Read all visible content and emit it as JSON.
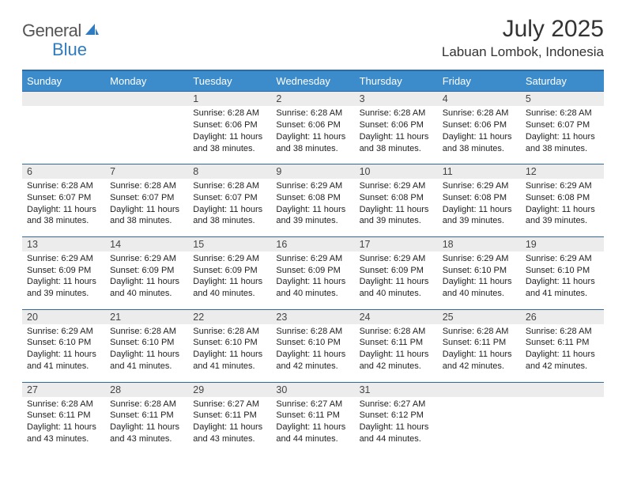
{
  "brand": {
    "part1": "General",
    "part2": "Blue",
    "accent": "#2f7bbf"
  },
  "title": "July 2025",
  "location": "Labuan Lombok, Indonesia",
  "colors": {
    "header_bg": "#3c8ccc",
    "header_fg": "#ffffff",
    "rule": "#2f6aa0",
    "daynum_bg": "#ececec",
    "top_border": "#2f6aa0"
  },
  "weekdays": [
    "Sunday",
    "Monday",
    "Tuesday",
    "Wednesday",
    "Thursday",
    "Friday",
    "Saturday"
  ],
  "weeks": [
    [
      null,
      null,
      {
        "d": "1",
        "sr": "6:28 AM",
        "ss": "6:06 PM",
        "dl": "11 hours and 38 minutes."
      },
      {
        "d": "2",
        "sr": "6:28 AM",
        "ss": "6:06 PM",
        "dl": "11 hours and 38 minutes."
      },
      {
        "d": "3",
        "sr": "6:28 AM",
        "ss": "6:06 PM",
        "dl": "11 hours and 38 minutes."
      },
      {
        "d": "4",
        "sr": "6:28 AM",
        "ss": "6:06 PM",
        "dl": "11 hours and 38 minutes."
      },
      {
        "d": "5",
        "sr": "6:28 AM",
        "ss": "6:07 PM",
        "dl": "11 hours and 38 minutes."
      }
    ],
    [
      {
        "d": "6",
        "sr": "6:28 AM",
        "ss": "6:07 PM",
        "dl": "11 hours and 38 minutes."
      },
      {
        "d": "7",
        "sr": "6:28 AM",
        "ss": "6:07 PM",
        "dl": "11 hours and 38 minutes."
      },
      {
        "d": "8",
        "sr": "6:28 AM",
        "ss": "6:07 PM",
        "dl": "11 hours and 38 minutes."
      },
      {
        "d": "9",
        "sr": "6:29 AM",
        "ss": "6:08 PM",
        "dl": "11 hours and 39 minutes."
      },
      {
        "d": "10",
        "sr": "6:29 AM",
        "ss": "6:08 PM",
        "dl": "11 hours and 39 minutes."
      },
      {
        "d": "11",
        "sr": "6:29 AM",
        "ss": "6:08 PM",
        "dl": "11 hours and 39 minutes."
      },
      {
        "d": "12",
        "sr": "6:29 AM",
        "ss": "6:08 PM",
        "dl": "11 hours and 39 minutes."
      }
    ],
    [
      {
        "d": "13",
        "sr": "6:29 AM",
        "ss": "6:09 PM",
        "dl": "11 hours and 39 minutes."
      },
      {
        "d": "14",
        "sr": "6:29 AM",
        "ss": "6:09 PM",
        "dl": "11 hours and 40 minutes."
      },
      {
        "d": "15",
        "sr": "6:29 AM",
        "ss": "6:09 PM",
        "dl": "11 hours and 40 minutes."
      },
      {
        "d": "16",
        "sr": "6:29 AM",
        "ss": "6:09 PM",
        "dl": "11 hours and 40 minutes."
      },
      {
        "d": "17",
        "sr": "6:29 AM",
        "ss": "6:09 PM",
        "dl": "11 hours and 40 minutes."
      },
      {
        "d": "18",
        "sr": "6:29 AM",
        "ss": "6:10 PM",
        "dl": "11 hours and 40 minutes."
      },
      {
        "d": "19",
        "sr": "6:29 AM",
        "ss": "6:10 PM",
        "dl": "11 hours and 41 minutes."
      }
    ],
    [
      {
        "d": "20",
        "sr": "6:29 AM",
        "ss": "6:10 PM",
        "dl": "11 hours and 41 minutes."
      },
      {
        "d": "21",
        "sr": "6:28 AM",
        "ss": "6:10 PM",
        "dl": "11 hours and 41 minutes."
      },
      {
        "d": "22",
        "sr": "6:28 AM",
        "ss": "6:10 PM",
        "dl": "11 hours and 41 minutes."
      },
      {
        "d": "23",
        "sr": "6:28 AM",
        "ss": "6:10 PM",
        "dl": "11 hours and 42 minutes."
      },
      {
        "d": "24",
        "sr": "6:28 AM",
        "ss": "6:11 PM",
        "dl": "11 hours and 42 minutes."
      },
      {
        "d": "25",
        "sr": "6:28 AM",
        "ss": "6:11 PM",
        "dl": "11 hours and 42 minutes."
      },
      {
        "d": "26",
        "sr": "6:28 AM",
        "ss": "6:11 PM",
        "dl": "11 hours and 42 minutes."
      }
    ],
    [
      {
        "d": "27",
        "sr": "6:28 AM",
        "ss": "6:11 PM",
        "dl": "11 hours and 43 minutes."
      },
      {
        "d": "28",
        "sr": "6:28 AM",
        "ss": "6:11 PM",
        "dl": "11 hours and 43 minutes."
      },
      {
        "d": "29",
        "sr": "6:27 AM",
        "ss": "6:11 PM",
        "dl": "11 hours and 43 minutes."
      },
      {
        "d": "30",
        "sr": "6:27 AM",
        "ss": "6:11 PM",
        "dl": "11 hours and 44 minutes."
      },
      {
        "d": "31",
        "sr": "6:27 AM",
        "ss": "6:12 PM",
        "dl": "11 hours and 44 minutes."
      },
      null,
      null
    ]
  ],
  "labels": {
    "sunrise": "Sunrise:",
    "sunset": "Sunset:",
    "daylight": "Daylight:"
  }
}
